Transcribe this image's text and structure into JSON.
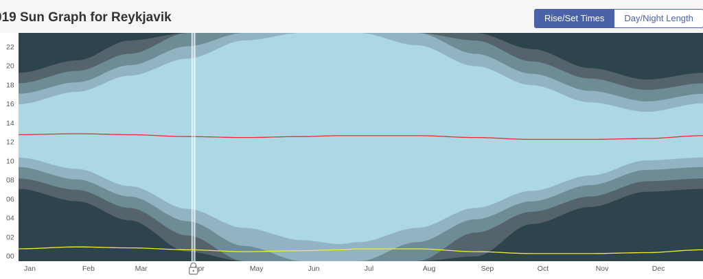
{
  "header": {
    "title": "019 Sun Graph for Reykjavik",
    "tabs": [
      {
        "label": "Rise/Set Times",
        "active": true
      },
      {
        "label": "Day/Night Length",
        "active": false
      }
    ]
  },
  "colors": {
    "night": "#2e444d",
    "astronomical_twilight": "#55636b",
    "nautical_twilight": "#6e8c96",
    "civil_twilight": "#92b4c2",
    "day": "#acd8e6",
    "solar_noon": "#ef2a2a",
    "solar_midnight": "#f4ec34"
  },
  "icons": {
    "lock": "lock-icon"
  },
  "chart_data": {
    "type": "area",
    "y_ticks": [
      "00",
      "02",
      "04",
      "06",
      "08",
      "10",
      "12",
      "14",
      "16",
      "18",
      "20",
      "22"
    ],
    "x_ticks": [
      "Jan",
      "Feb",
      "Mar",
      "Apr",
      "May",
      "Jun",
      "Jul",
      "Aug",
      "Sep",
      "Oct",
      "Nov",
      "Dec"
    ],
    "ylim": [
      0,
      24
    ],
    "x": [
      1,
      32,
      60,
      91,
      121,
      152,
      172,
      182,
      213,
      244,
      274,
      305,
      335,
      365
    ],
    "series": [
      {
        "band": "civil_twilight",
        "start": [
          10.9,
          9.7,
          7.9,
          5.5,
          3.5,
          2.2,
          1.8,
          2.0,
          3.5,
          5.6,
          7.4,
          9.0,
          10.6,
          10.9
        ],
        "end": [
          16.5,
          17.8,
          19.5,
          21.3,
          23.2,
          24.0,
          24.0,
          24.0,
          22.7,
          20.5,
          18.5,
          16.7,
          15.7,
          16.6
        ]
      },
      {
        "band": "nautical_twilight",
        "start": [
          9.9,
          8.6,
          6.8,
          4.2,
          1.6,
          0.0,
          0.0,
          0.0,
          2.0,
          4.4,
          6.3,
          8.0,
          9.6,
          9.9
        ],
        "end": [
          17.6,
          18.8,
          20.6,
          22.6,
          24.0,
          24.0,
          24.0,
          24.0,
          24.0,
          21.8,
          19.7,
          17.9,
          16.8,
          17.6
        ]
      },
      {
        "band": "astronomical_twilight",
        "start": [
          8.7,
          7.5,
          5.6,
          2.7,
          0.0,
          0.0,
          0.0,
          0.0,
          0.0,
          3.0,
          5.2,
          6.8,
          8.4,
          8.7
        ],
        "end": [
          18.7,
          20.0,
          21.8,
          24.0,
          24.0,
          24.0,
          24.0,
          24.0,
          24.0,
          23.2,
          21.0,
          19.2,
          18.0,
          18.7
        ]
      },
      {
        "band": "night",
        "start": [
          7.6,
          6.3,
          4.3,
          1.0,
          0.0,
          0.0,
          0.0,
          0.0,
          0.0,
          0.5,
          3.9,
          5.7,
          7.3,
          7.6
        ],
        "end": [
          19.8,
          21.1,
          23.2,
          24.0,
          24.0,
          24.0,
          24.0,
          24.0,
          24.0,
          24.0,
          22.3,
          20.3,
          19.1,
          19.8
        ]
      }
    ],
    "solar_noon": [
      13.3,
      13.4,
      13.3,
      13.1,
      13.0,
      13.1,
      13.2,
      13.2,
      13.2,
      13.0,
      12.8,
      12.8,
      12.9,
      13.2
    ],
    "solar_midnight": [
      1.3,
      1.5,
      1.4,
      1.2,
      1.0,
      1.1,
      1.2,
      1.3,
      1.3,
      1.0,
      0.8,
      0.8,
      0.9,
      1.2
    ],
    "marker_day": 94
  }
}
